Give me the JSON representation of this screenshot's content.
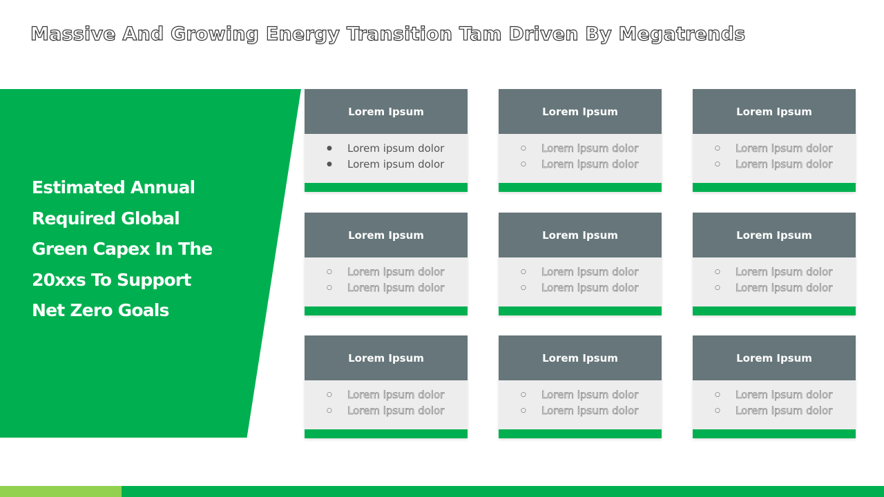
{
  "title": "Massive And Growing Energy Transition Tam Driven By Megatrends",
  "panel": {
    "text": "Estimated Annual Required Global Green Capex In The 20xxs To Support Net Zero Goals"
  },
  "colors": {
    "accent_green": "#00b050",
    "light_green": "#92d050",
    "card_header": "#66767a",
    "card_body": "#ededed"
  },
  "cards": [
    {
      "heading": "Lorem Ipsum",
      "bullet_style": "filled",
      "items": [
        "Lorem ipsum dolor",
        "Lorem ipsum dolor"
      ]
    },
    {
      "heading": "Lorem Ipsum",
      "bullet_style": "hollow",
      "items": [
        "Lorem ipsum dolor",
        "Lorem ipsum dolor"
      ]
    },
    {
      "heading": "Lorem Ipsum",
      "bullet_style": "hollow",
      "items": [
        "Lorem ipsum dolor",
        "Lorem ipsum dolor"
      ]
    },
    {
      "heading": "Lorem Ipsum",
      "bullet_style": "hollow",
      "items": [
        "Lorem ipsum dolor",
        "Lorem ipsum dolor"
      ]
    },
    {
      "heading": "Lorem Ipsum",
      "bullet_style": "hollow",
      "items": [
        "Lorem ipsum dolor",
        "Lorem ipsum dolor"
      ]
    },
    {
      "heading": "Lorem Ipsum",
      "bullet_style": "hollow",
      "items": [
        "Lorem ipsum dolor",
        "Lorem ipsum dolor"
      ]
    },
    {
      "heading": "Lorem Ipsum",
      "bullet_style": "hollow",
      "items": [
        "Lorem ipsum dolor",
        "Lorem ipsum dolor"
      ]
    },
    {
      "heading": "Lorem Ipsum",
      "bullet_style": "hollow",
      "items": [
        "Lorem ipsum dolor",
        "Lorem ipsum dolor"
      ]
    },
    {
      "heading": "Lorem Ipsum",
      "bullet_style": "hollow",
      "items": [
        "Lorem ipsum dolor",
        "Lorem ipsum dolor"
      ]
    }
  ]
}
